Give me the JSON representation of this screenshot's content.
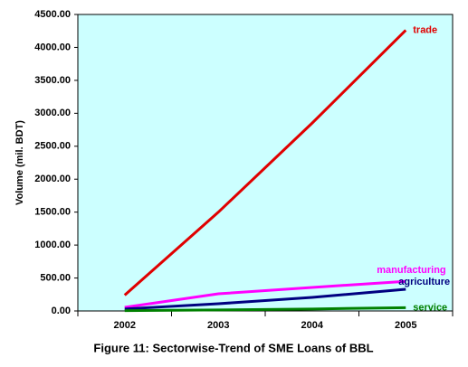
{
  "chart_data": {
    "type": "line",
    "title": "Figure 11: Sectorwise-Trend of SME Loans of BBL",
    "y_label": "Volume (mil. BDT)",
    "categories": [
      "2002",
      "2003",
      "2004",
      "2005"
    ],
    "series": [
      {
        "name": "trade",
        "color": "#e00000",
        "values": [
          240,
          1500,
          2850,
          4260
        ]
      },
      {
        "name": "manufacturing",
        "color": "#ff00ff",
        "values": [
          55,
          260,
          357,
          450
        ]
      },
      {
        "name": "agriculture",
        "color": "#000080",
        "values": [
          30,
          110,
          205,
          330
        ]
      },
      {
        "name": "service",
        "color": "#008000",
        "values": [
          5,
          15,
          30,
          50
        ]
      }
    ],
    "ylim": [
      0,
      4500
    ],
    "yticks": [
      {
        "value": 0,
        "label": "0.00"
      },
      {
        "value": 500,
        "label": "500.00"
      },
      {
        "value": 1000,
        "label": "1000.00"
      },
      {
        "value": 1500,
        "label": "1500.00"
      },
      {
        "value": 2000,
        "label": "2000.00"
      },
      {
        "value": 2500,
        "label": "2500.00"
      },
      {
        "value": 3000,
        "label": "3000.00"
      },
      {
        "value": 3500,
        "label": "3500.00"
      },
      {
        "value": 4000,
        "label": "4000.00"
      },
      {
        "value": 4500,
        "label": "4500.00"
      }
    ],
    "plot_background": "#ccffff"
  }
}
